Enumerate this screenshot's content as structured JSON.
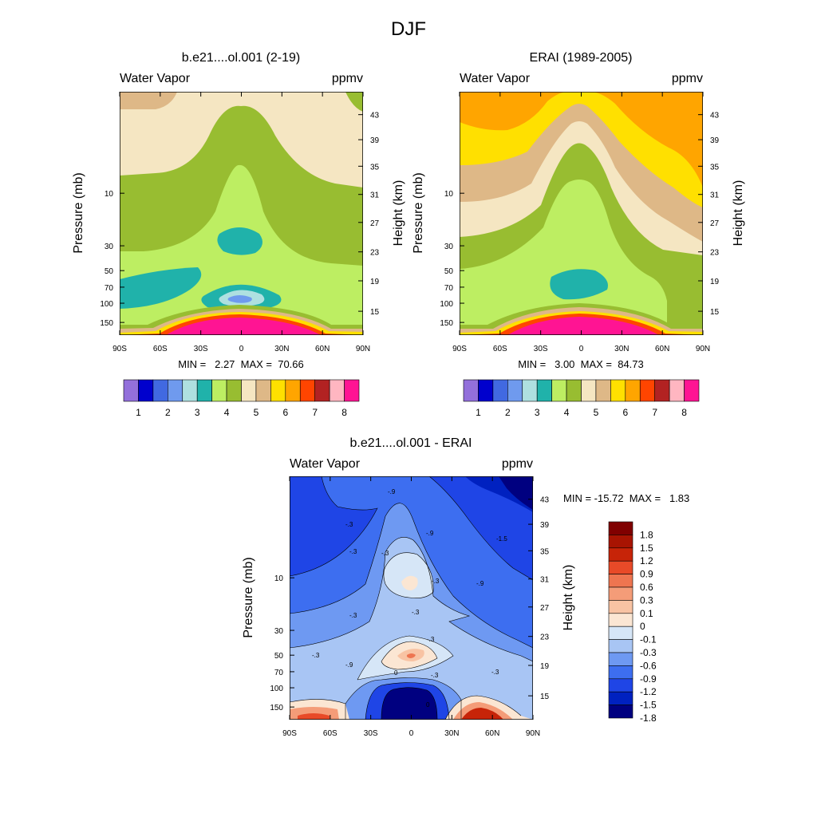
{
  "main_title": "DJF",
  "colors": {
    "seq": [
      "#9370DB",
      "#0000CD",
      "#4169E1",
      "#6F9AEE",
      "#AEE0E0",
      "#20B2AA",
      "#BDEE62",
      "#98BD31",
      "#F5E6C2",
      "#DEB887",
      "#FFE000",
      "#FFA500",
      "#FF4500",
      "#B22222",
      "#FFB6C1",
      "#FF1493"
    ],
    "div": [
      "#000080",
      "#0021C0",
      "#1F45E6",
      "#3D6EF0",
      "#6E99F2",
      "#A8C5F4",
      "#D6E6F7",
      "#FBE6D3",
      "#F8C3A3",
      "#F49C78",
      "#EE7550",
      "#E84A28",
      "#C72408",
      "#A81402",
      "#800000"
    ]
  },
  "chart_data": [
    {
      "type": "contour",
      "id": "model",
      "title": "b.e21....ol.001 (2-19)",
      "left_label": "Water Vapor",
      "right_label": "ppmv",
      "xlabel": "",
      "ylabel": "Pressure (mb)",
      "ylabel_right": "Height (km)",
      "x_ticks": [
        "90S",
        "60S",
        "30S",
        "0",
        "30N",
        "60N",
        "90N"
      ],
      "x_range": [
        -90,
        90
      ],
      "y_ticks_pressure": [
        "10",
        "30",
        "50",
        "70",
        "100",
        "150"
      ],
      "y_ticks_height": [
        "43",
        "39",
        "35",
        "31",
        "27",
        "23",
        "19",
        "15"
      ],
      "stats": "MIN =   2.27  MAX =  70.66",
      "colorbar_labels": [
        "1",
        "2",
        "3",
        "4",
        "5",
        "6",
        "7",
        "8"
      ]
    },
    {
      "type": "contour",
      "id": "obs",
      "title": "ERAI (1989-2005)",
      "left_label": "Water Vapor",
      "right_label": "ppmv",
      "xlabel": "",
      "ylabel": "Pressure (mb)",
      "ylabel_right": "Height (km)",
      "x_ticks": [
        "90S",
        "60S",
        "30S",
        "0",
        "30N",
        "60N",
        "90N"
      ],
      "x_range": [
        -90,
        90
      ],
      "y_ticks_pressure": [
        "10",
        "30",
        "50",
        "70",
        "100",
        "150"
      ],
      "y_ticks_height": [
        "43",
        "39",
        "35",
        "31",
        "27",
        "23",
        "19",
        "15"
      ],
      "stats": "MIN =   3.00  MAX =  84.73",
      "colorbar_labels": [
        "1",
        "2",
        "3",
        "4",
        "5",
        "6",
        "7",
        "8"
      ]
    },
    {
      "type": "contour",
      "id": "diff",
      "title": "b.e21....ol.001 - ERAI",
      "left_label": "Water Vapor",
      "right_label": "ppmv",
      "xlabel": "",
      "ylabel": "Pressure (mb)",
      "ylabel_right": "Height (km)",
      "x_ticks": [
        "90S",
        "60S",
        "30S",
        "0",
        "30N",
        "60N",
        "90N"
      ],
      "x_range": [
        -90,
        90
      ],
      "y_ticks_pressure": [
        "10",
        "30",
        "50",
        "70",
        "100",
        "150"
      ],
      "y_ticks_height": [
        "43",
        "39",
        "35",
        "31",
        "27",
        "23",
        "19",
        "15"
      ],
      "stats": "MIN = -15.72  MAX =   1.83",
      "colorbar_labels": [
        "1.8",
        "1.5",
        "1.2",
        "0.9",
        "0.6",
        "0.3",
        "0.1",
        "0",
        "-0.1",
        "-0.3",
        "-0.6",
        "-0.9",
        "-1.2",
        "-1.5",
        "-1.8"
      ],
      "contour_labels": [
        "-.9",
        "-.3",
        "-.3",
        "-.3",
        "-.3",
        "-.3",
        "-.3",
        "-.3",
        "-.9",
        "-.9",
        "-1.5",
        "-.9",
        "-.3",
        "0",
        "-.3",
        "0",
        "-.3"
      ]
    }
  ]
}
